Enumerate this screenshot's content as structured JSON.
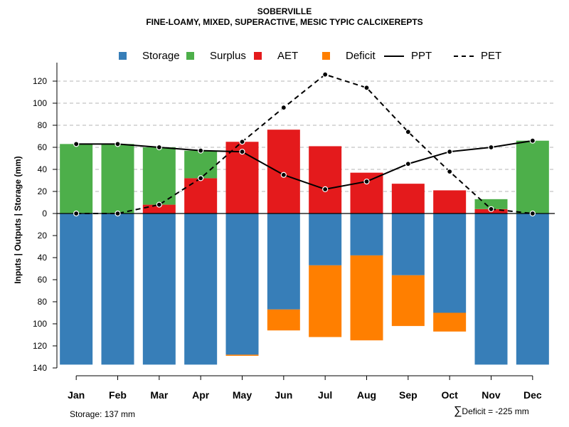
{
  "chart_data": {
    "type": "bar",
    "title": "SOBERVILLE",
    "subtitle": "FINE-LOAMY, MIXED, SUPERACTIVE, MESIC TYPIC CALCIXEREPTS",
    "ylabel": "Inputs | Outputs | Storage    (mm)",
    "ylim": [
      -140,
      130
    ],
    "yticks": [
      120,
      100,
      80,
      60,
      40,
      20,
      0,
      -20,
      -40,
      -60,
      -80,
      -100,
      -120,
      -140
    ],
    "ytick_labels": [
      "120",
      "100",
      "80",
      "60",
      "40",
      "20",
      "0",
      "20",
      "40",
      "60",
      "80",
      "100",
      "120",
      "140"
    ],
    "categories": [
      "Jan",
      "Feb",
      "Mar",
      "Apr",
      "May",
      "Jun",
      "Jul",
      "Aug",
      "Sep",
      "Oct",
      "Nov",
      "Dec"
    ],
    "series": [
      {
        "name": "Storage",
        "color": "#377EB8",
        "values": [
          137,
          137,
          137,
          137,
          128,
          87,
          47,
          38,
          56,
          90,
          137,
          137
        ]
      },
      {
        "name": "Surplus",
        "color": "#4DAF4A",
        "values": [
          63,
          63,
          52,
          25,
          0,
          0,
          0,
          0,
          0,
          0,
          9,
          66
        ]
      },
      {
        "name": "AET",
        "color": "#E41A1C",
        "values": [
          0,
          0,
          8,
          32,
          65,
          76,
          61,
          37,
          27,
          21,
          4,
          0
        ]
      },
      {
        "name": "Deficit",
        "color": "#FF7F00",
        "values": [
          0,
          0,
          0,
          0,
          1,
          19,
          65,
          77,
          46,
          17,
          0,
          0
        ]
      },
      {
        "name": "PPT",
        "style": "solid",
        "values": [
          63,
          63,
          60,
          57,
          56,
          35,
          22,
          29,
          45,
          56,
          60,
          66
        ]
      },
      {
        "name": "PET",
        "style": "dashed",
        "values": [
          0,
          0,
          8,
          32,
          65,
          96,
          126,
          114,
          74,
          38,
          4,
          0
        ]
      }
    ],
    "footer_left": "Storage: 137 mm",
    "footer_right_symbol": "∑",
    "footer_right": "Deficit = -225 mm"
  }
}
